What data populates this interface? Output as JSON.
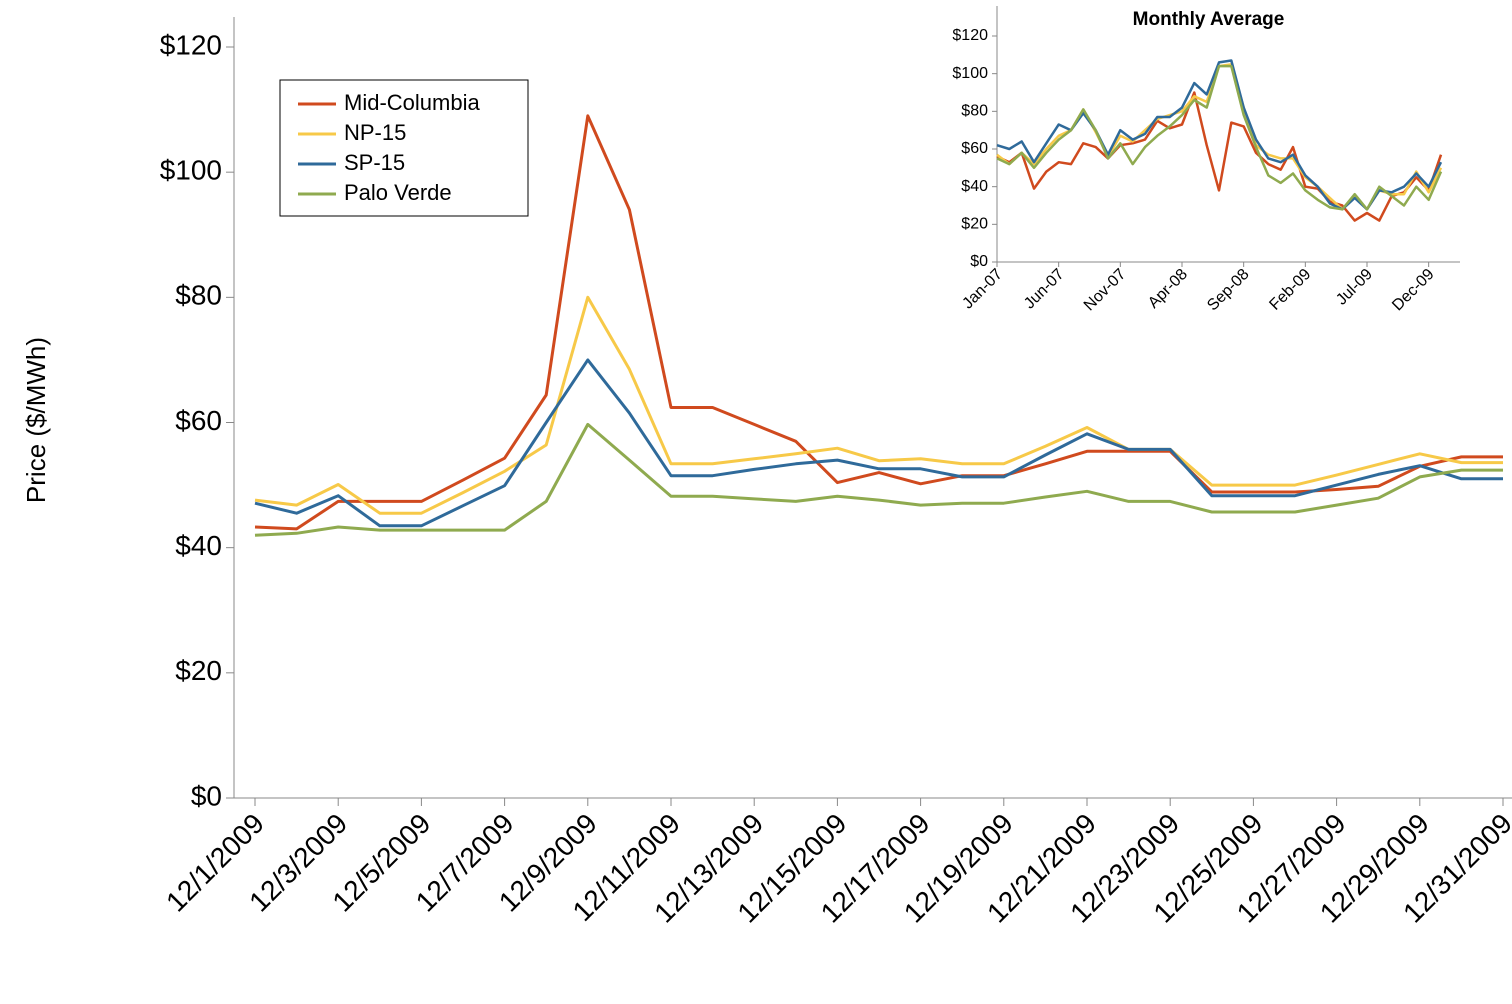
{
  "chart_data": [
    {
      "type": "line",
      "y_label": "Price ($/MWh)",
      "categories": [
        "12/1/2009",
        null,
        "12/3/2009",
        null,
        "12/5/2009",
        null,
        "12/7/2009",
        null,
        "12/9/2009",
        null,
        "12/11/2009",
        null,
        "12/13/2009",
        null,
        "12/15/2009",
        null,
        "12/17/2009",
        null,
        "12/19/2009",
        null,
        "12/21/2009",
        null,
        "12/23/2009",
        null,
        "12/25/2009",
        null,
        "12/27/2009",
        null,
        "12/29/2009",
        null,
        "12/31/2009"
      ],
      "series": [
        {
          "name": "Mid-Columbia",
          "color": "#d04a1e",
          "values": [
            43.3,
            43.0,
            47.4,
            47.4,
            47.4,
            50.8,
            54.3,
            64.4,
            109,
            94,
            62.4,
            62.4,
            59.7,
            57,
            50.4,
            52,
            50.2,
            51.5,
            51.5,
            53.4,
            55.4,
            55.4,
            55.4,
            48.9,
            48.9,
            48.9,
            49.3,
            49.8,
            53,
            54.5,
            54.5
          ]
        },
        {
          "name": "NP-15",
          "color": "#f7c948",
          "values": [
            47.6,
            46.8,
            50.1,
            45.5,
            45.5,
            48.8,
            52.2,
            56.4,
            80,
            68.5,
            53.4,
            53.4,
            54.2,
            55,
            55.9,
            53.9,
            54.2,
            53.4,
            53.4,
            56.2,
            59.2,
            55.7,
            55.7,
            50,
            50,
            50,
            51.6,
            53.3,
            55,
            53.6,
            53.6
          ]
        },
        {
          "name": "SP-15",
          "color": "#2f6a9a",
          "values": [
            47.1,
            45.5,
            48.3,
            43.5,
            43.5,
            46.7,
            49.9,
            60,
            70,
            61.5,
            51.5,
            51.5,
            52.5,
            53.4,
            54,
            52.6,
            52.6,
            51.3,
            51.3,
            54.8,
            58.2,
            55.7,
            55.7,
            48.3,
            48.3,
            48.3,
            50,
            51.7,
            53.1,
            51,
            51
          ]
        },
        {
          "name": "Palo Verde",
          "color": "#8faa4f",
          "values": [
            42,
            42.3,
            43.3,
            42.8,
            42.8,
            42.8,
            42.8,
            47.4,
            59.7,
            54,
            48.2,
            48.2,
            47.8,
            47.4,
            48.2,
            47.6,
            46.8,
            47.1,
            47.1,
            48.1,
            49,
            47.4,
            47.4,
            45.7,
            45.7,
            45.7,
            46.8,
            47.9,
            51.3,
            52.4,
            52.4
          ]
        }
      ],
      "ylim": [
        0,
        120
      ],
      "yticks": [
        {
          "value": 0,
          "label": "$0"
        },
        {
          "value": 20,
          "label": "$20"
        },
        {
          "value": 40,
          "label": "$40"
        },
        {
          "value": 60,
          "label": "$60"
        },
        {
          "value": 80,
          "label": "$80"
        },
        {
          "value": 100,
          "label": "$100"
        },
        {
          "value": 120,
          "label": "$120"
        }
      ],
      "legend": "upper left"
    },
    {
      "type": "line",
      "title": "Monthly Average",
      "categories": [
        "Jan-07",
        null,
        null,
        null,
        null,
        "Jun-07",
        null,
        null,
        null,
        null,
        "Nov-07",
        null,
        null,
        null,
        null,
        "Apr-08",
        null,
        null,
        null,
        null,
        "Sep-08",
        null,
        null,
        null,
        null,
        "Feb-09",
        null,
        null,
        null,
        null,
        "Jul-09",
        null,
        null,
        null,
        null,
        "Dec-09",
        null
      ],
      "series": [
        {
          "name": "Mid-Columbia",
          "color": "#d04a1e",
          "values": [
            56,
            53,
            58,
            39,
            48,
            53,
            52,
            63,
            61,
            55,
            62,
            63,
            65,
            75,
            71,
            73,
            90,
            62,
            38,
            74,
            72,
            58,
            52,
            49,
            61,
            40,
            39,
            32,
            30,
            22,
            26,
            22,
            35,
            37,
            45,
            38,
            57
          ]
        },
        {
          "name": "NP-15",
          "color": "#f7c948",
          "values": [
            57,
            52,
            58,
            52,
            60,
            67,
            70,
            81,
            69,
            56,
            67,
            64,
            70,
            76,
            78,
            80,
            88,
            85,
            104,
            105,
            82,
            62,
            57,
            55,
            55,
            45,
            40,
            34,
            28,
            35,
            28,
            38,
            36,
            36,
            48,
            37,
            50
          ]
        },
        {
          "name": "SP-15",
          "color": "#2f6a9a",
          "values": [
            62,
            60,
            64,
            53,
            63,
            73,
            70,
            79,
            70,
            57,
            70,
            65,
            68,
            77,
            77,
            82,
            95,
            89,
            106,
            107,
            82,
            65,
            55,
            53,
            57,
            46,
            40,
            31,
            28,
            34,
            28,
            38,
            37,
            40,
            47,
            40,
            53
          ]
        },
        {
          "name": "Palo Verde",
          "color": "#8faa4f",
          "values": [
            55,
            52,
            58,
            50,
            58,
            65,
            70,
            81,
            70,
            55,
            63,
            52,
            61,
            67,
            72,
            78,
            86,
            82,
            104,
            104,
            78,
            61,
            46,
            42,
            47,
            38,
            33,
            29,
            28,
            36,
            28,
            40,
            35,
            30,
            40,
            33,
            48
          ]
        }
      ],
      "ylim": [
        0,
        120
      ],
      "yticks": [
        {
          "value": 0,
          "label": "$0"
        },
        {
          "value": 20,
          "label": "$20"
        },
        {
          "value": 40,
          "label": "$40"
        },
        {
          "value": 60,
          "label": "$60"
        },
        {
          "value": 80,
          "label": "$80"
        },
        {
          "value": 100,
          "label": "$100"
        },
        {
          "value": 120,
          "label": "$120"
        }
      ]
    }
  ]
}
